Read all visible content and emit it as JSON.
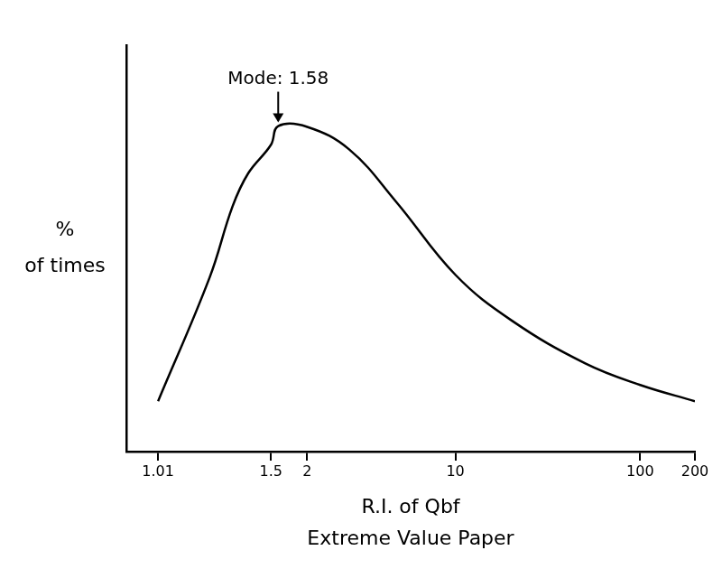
{
  "chart_data": {
    "type": "line",
    "x_label": "R.I. of Qbf",
    "y_label": "% of times",
    "subtitle": "Extreme Value Paper",
    "x": [
      1.01,
      1.1,
      1.2,
      1.3,
      1.5,
      1.58,
      2,
      3,
      5,
      10,
      20,
      50,
      100,
      200
    ],
    "values": [
      12.4,
      42.8,
      60.3,
      68.5,
      75.5,
      80.1,
      79.9,
      74.3,
      61.4,
      43.5,
      32.2,
      21.7,
      16.4,
      12.4
    ],
    "color": "#000000",
    "xlim": [
      1.001,
      200
    ],
    "xticks": [
      1.01,
      1.5,
      2,
      10,
      100,
      200
    ],
    "ylim": [
      0,
      100
    ],
    "grid": false,
    "tick_labels": "x",
    "annotations": [
      {
        "text": "Mode: 1.58",
        "x": 1.58,
        "y": 80.1
      }
    ]
  }
}
